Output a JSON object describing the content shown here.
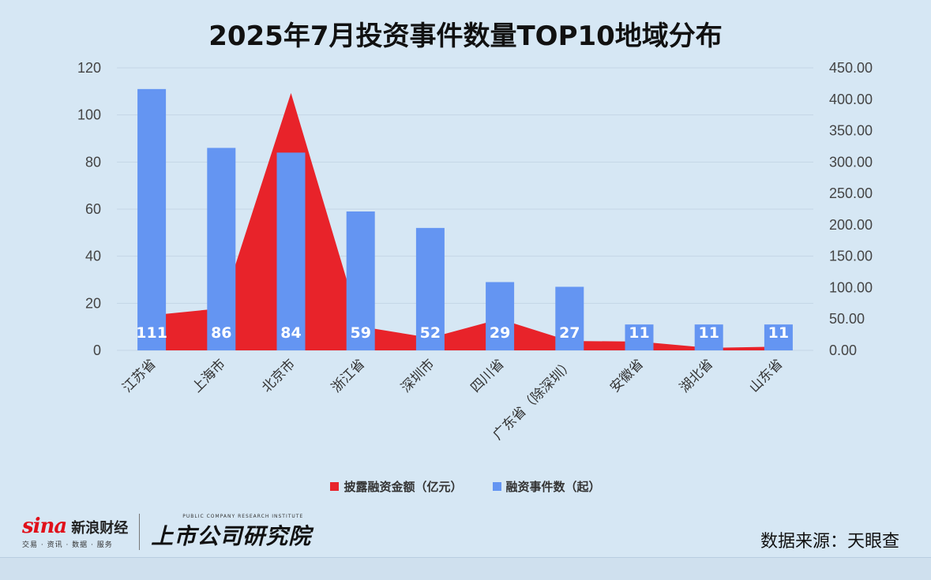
{
  "title": "2025年7月投资事件数量TOP10地域分布",
  "legend": {
    "area_label": "披露融资金额（亿元）",
    "bar_label": "融资事件数（起）"
  },
  "source": "数据来源：天眼查",
  "logos": {
    "sina_logo_text": "sina",
    "sina_name": "新浪财经",
    "sina_tagline": "交易 · 资讯 · 数据 · 服务",
    "institute_en": "PUBLIC COMPANY RESEARCH INSTITUTE",
    "institute_cn": "上市公司研究院"
  },
  "colors": {
    "bar": "#6495f2",
    "area": "#e8232a",
    "background": "#d6e7f4",
    "bar_label": "#ffffff"
  },
  "chart_data": {
    "type": "bar",
    "categories": [
      "江苏省",
      "上海市",
      "北京市",
      "浙江省",
      "深圳市",
      "四川省",
      "广东省（除深圳）",
      "安徽省",
      "湖北省",
      "山东省"
    ],
    "series": [
      {
        "name": "融资事件数（起）",
        "type": "bar",
        "axis": "left",
        "values": [
          111,
          86,
          84,
          59,
          52,
          29,
          27,
          11,
          11,
          11
        ],
        "data_labels": [
          "111",
          "86",
          "84",
          "59",
          "52",
          "29",
          "27",
          "11",
          "11",
          "11"
        ]
      },
      {
        "name": "披露融资金额（亿元）",
        "type": "area",
        "axis": "right",
        "values": [
          56,
          67,
          410,
          38,
          20,
          50,
          15,
          14,
          4,
          6
        ]
      }
    ],
    "y_left": {
      "min": 0,
      "max": 120,
      "ticks": [
        "0",
        "20",
        "40",
        "60",
        "80",
        "100",
        "120"
      ]
    },
    "y_right": {
      "min": 0,
      "max": 450,
      "ticks": [
        "0.00",
        "50.00",
        "100.00",
        "150.00",
        "200.00",
        "250.00",
        "300.00",
        "350.00",
        "400.00",
        "450.00"
      ]
    },
    "grid": true,
    "legend_position": "bottom"
  }
}
